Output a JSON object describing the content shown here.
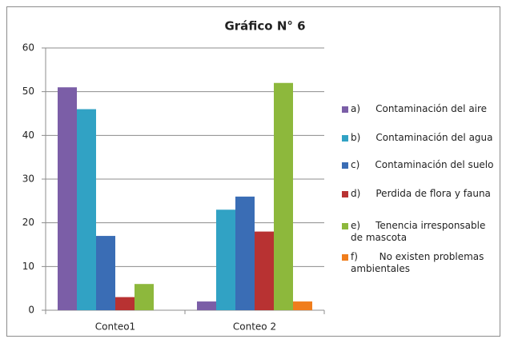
{
  "chart_data": {
    "type": "bar",
    "title": "Gráfico N° 6",
    "categories": [
      "Conteo1",
      "Conteo 2"
    ],
    "series": [
      {
        "name": "a)     Contaminación del aire",
        "color": "#7b5ea7",
        "values": [
          51,
          2
        ]
      },
      {
        "name": "b)     Contaminación del agua",
        "color": "#31a2c4",
        "values": [
          46,
          23
        ]
      },
      {
        "name": "c)     Contaminación del suelo",
        "color": "#3a6db5",
        "values": [
          17,
          26
        ]
      },
      {
        "name": "d)     Perdida de flora y fauna",
        "color": "#b83232",
        "values": [
          3,
          18
        ]
      },
      {
        "name": "e)     Tenencia irresponsable de mascota",
        "color": "#8db83c",
        "values": [
          6,
          52
        ]
      },
      {
        "name": "f)       No existen problemas ambientales",
        "color": "#f07d1c",
        "values": [
          0,
          2
        ]
      }
    ],
    "ylim": [
      0,
      60
    ],
    "yticks": [
      0,
      10,
      20,
      30,
      40,
      50,
      60
    ],
    "grid": true,
    "legend": "right"
  }
}
